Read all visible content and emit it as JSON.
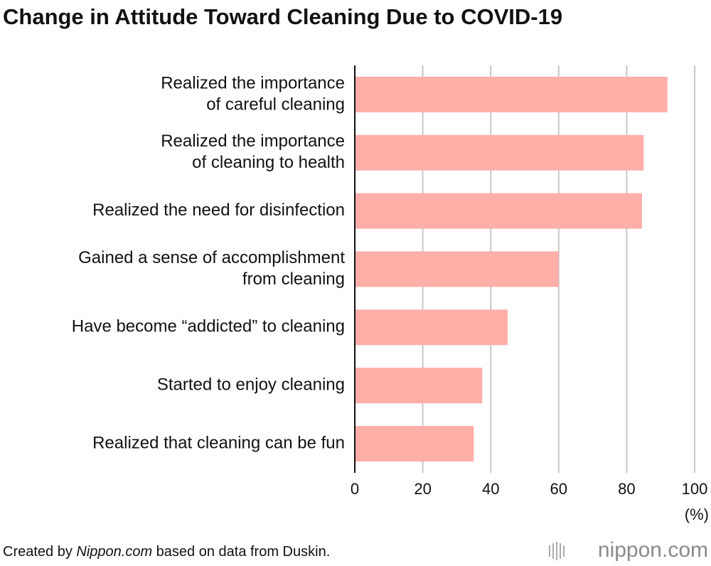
{
  "chart_data": {
    "type": "bar",
    "orientation": "horizontal",
    "title": "Change in Attitude Toward Cleaning Due to COVID-19",
    "categories": [
      [
        "Realized the importance",
        "of careful cleaning"
      ],
      [
        "Realized the importance",
        "of cleaning to health"
      ],
      [
        "Realized the need for disinfection"
      ],
      [
        "Gained a sense of accomplishment",
        "from cleaning"
      ],
      [
        "Have become “addicted” to cleaning"
      ],
      [
        "Started to enjoy cleaning"
      ],
      [
        "Realized that cleaning can be fun"
      ]
    ],
    "values": [
      92,
      85,
      84.5,
      60,
      45,
      37.5,
      35
    ],
    "color": "#ffaea8",
    "xlim": [
      0,
      100
    ],
    "xticks": [
      0,
      20,
      40,
      60,
      80,
      100
    ],
    "grid": true,
    "x_unit": "(%)",
    "source": [
      "Created by ",
      "Nippon.com",
      " based on data from Duskin."
    ],
    "logo": "nippon.com"
  }
}
